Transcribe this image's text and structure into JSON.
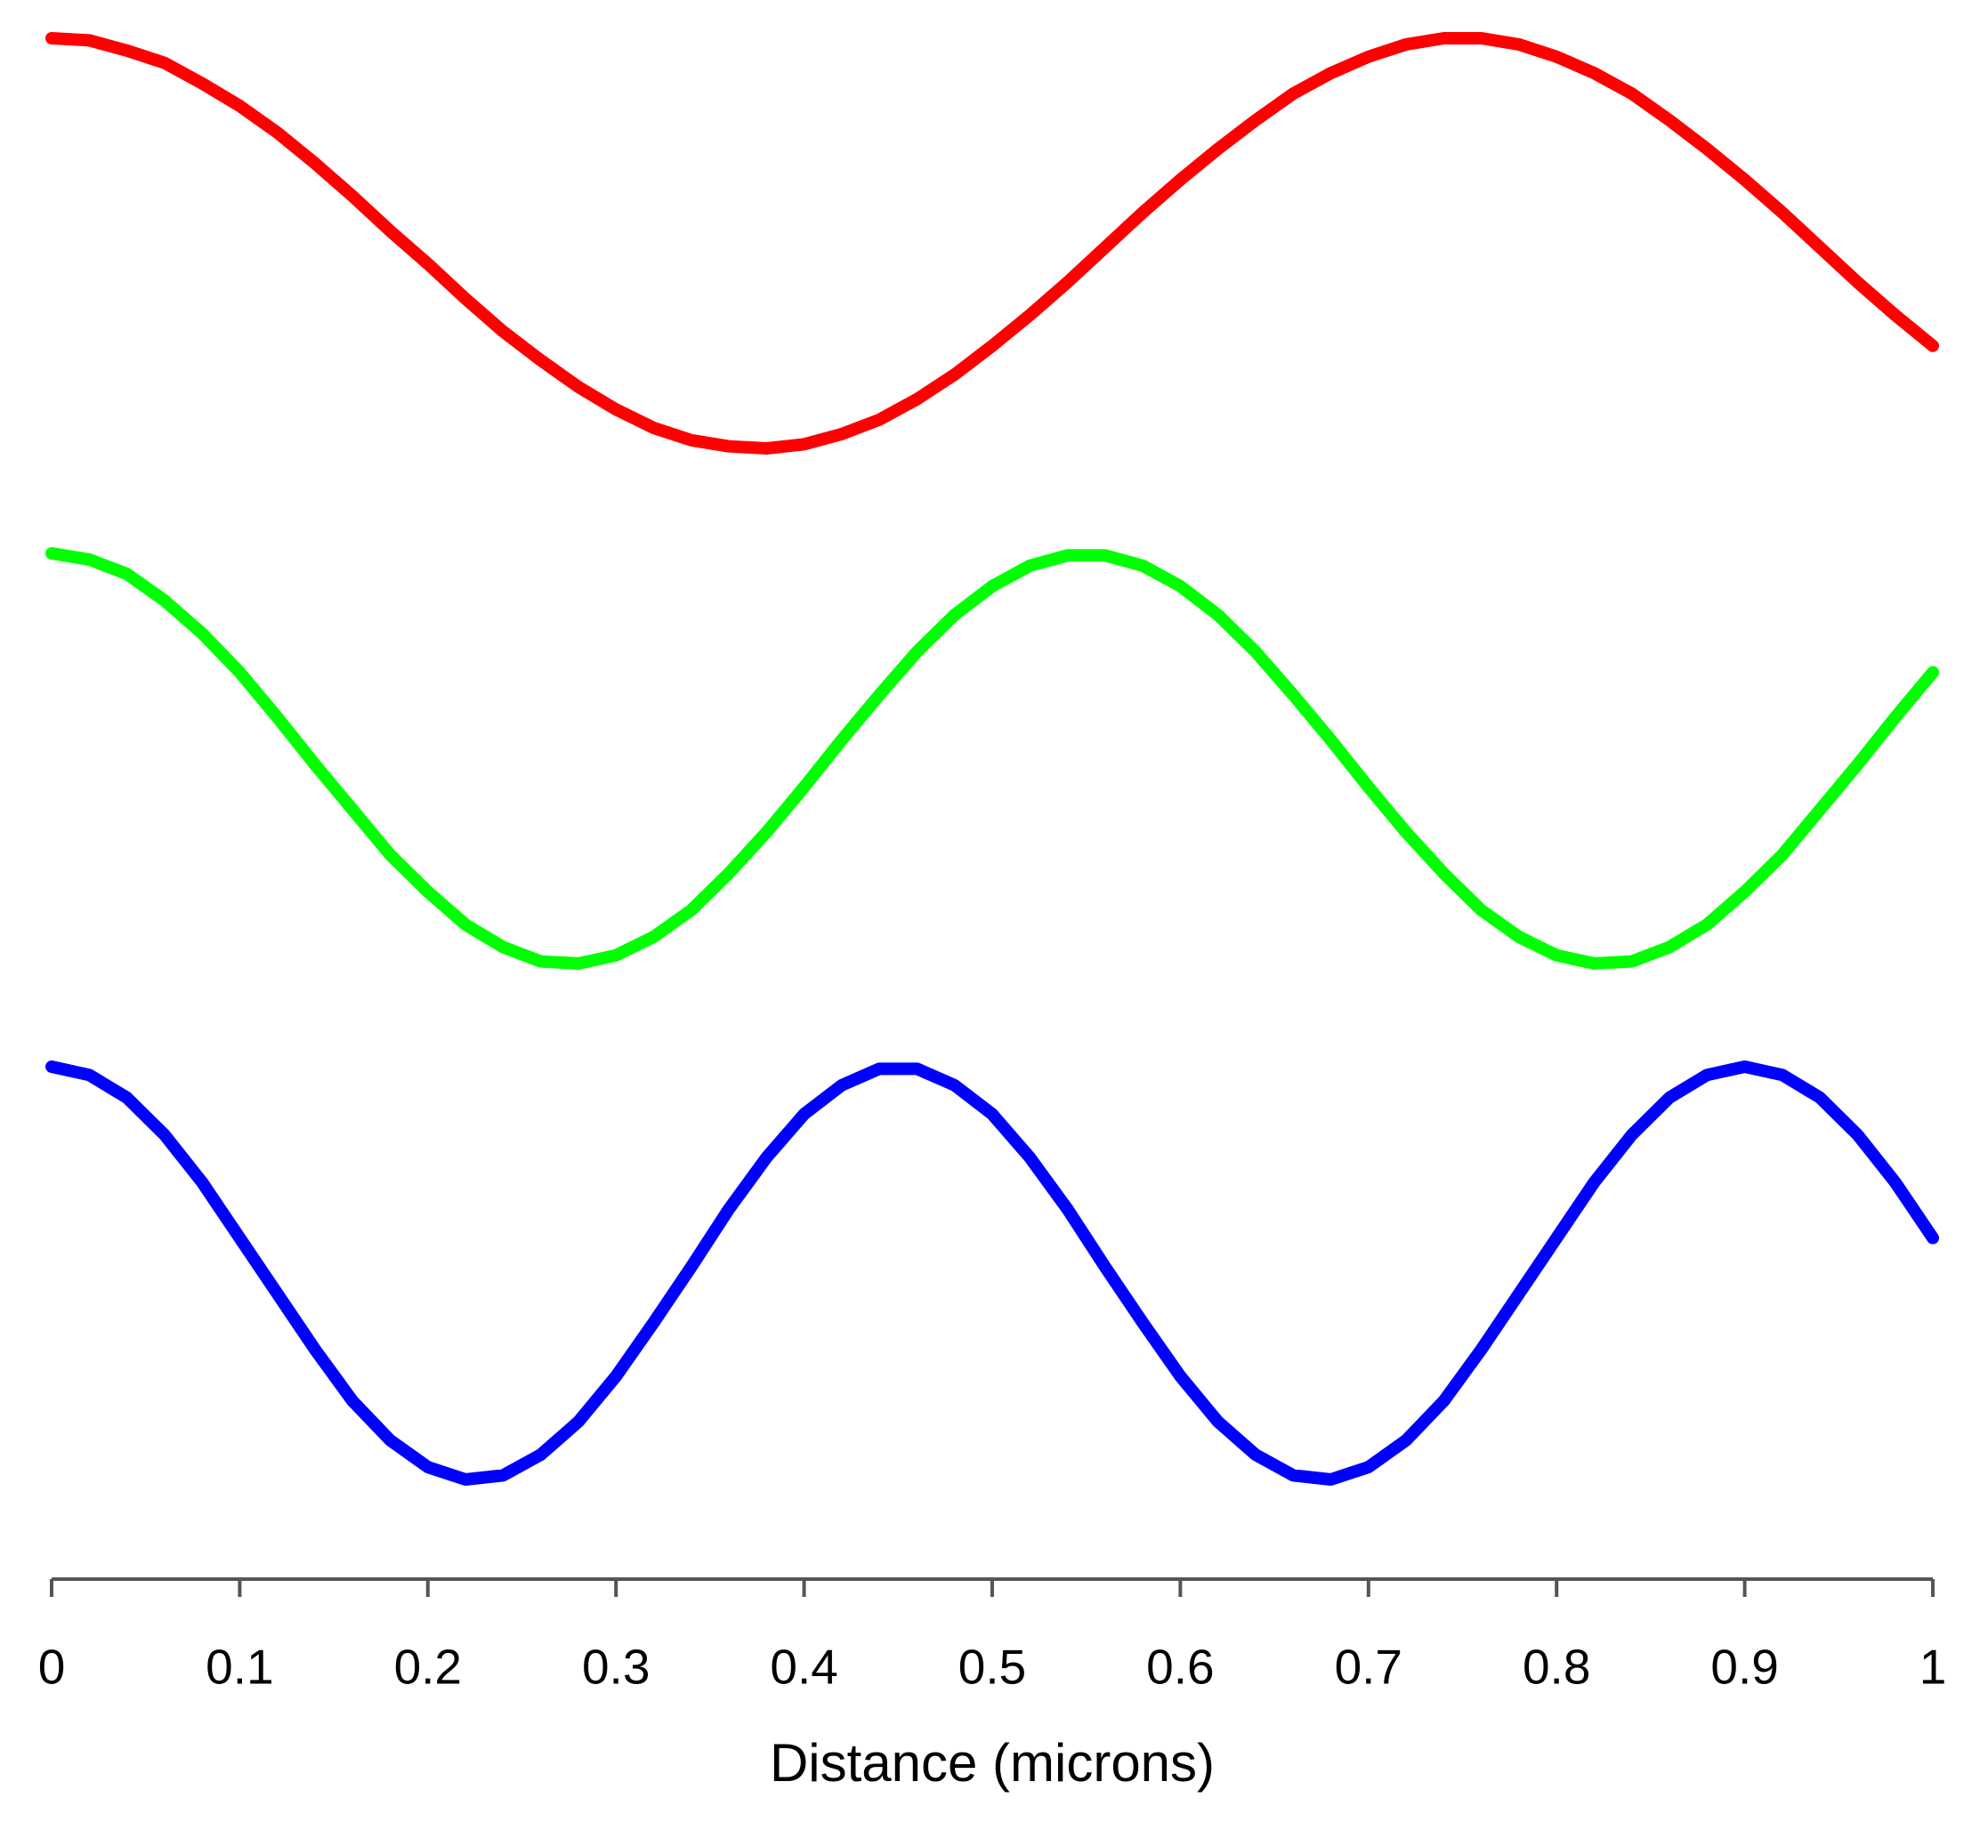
{
  "chart_data": {
    "type": "line",
    "x_label": "Distance (microns)",
    "x": [
      0,
      0.02,
      0.04,
      0.06,
      0.08,
      0.1,
      0.12,
      0.14,
      0.16,
      0.18,
      0.2,
      0.22,
      0.24,
      0.26,
      0.28,
      0.3,
      0.32,
      0.34,
      0.36,
      0.38,
      0.4,
      0.42,
      0.44,
      0.46,
      0.48,
      0.5,
      0.52,
      0.54,
      0.56,
      0.58,
      0.6,
      0.62,
      0.64,
      0.66,
      0.68,
      0.7,
      0.72,
      0.74,
      0.76,
      0.78,
      0.8,
      0.82,
      0.84,
      0.86,
      0.88,
      0.9,
      0.92,
      0.94,
      0.96,
      0.98,
      1
    ],
    "series": [
      {
        "color": "#ff0000",
        "values": [
          1,
          0.99,
          0.94,
          0.88,
          0.78,
          0.67,
          0.54,
          0.39,
          0.23,
          0.06,
          -0.1,
          -0.27,
          -0.43,
          -0.57,
          -0.7,
          -0.81,
          -0.9,
          -0.96,
          -0.99,
          -1.0,
          -0.98,
          -0.93,
          -0.86,
          -0.76,
          -0.64,
          -0.5,
          -0.35,
          -0.19,
          -0.02,
          0.15,
          0.31,
          0.46,
          0.6,
          0.73,
          0.83,
          0.91,
          0.97,
          1.0,
          1.0,
          0.97,
          0.91,
          0.83,
          0.73,
          0.6,
          0.46,
          0.31,
          0.15,
          -0.02,
          -0.19,
          -0.35,
          -0.5
        ]
      },
      {
        "color": "#00ff00",
        "values": [
          1,
          0.97,
          0.9,
          0.77,
          0.61,
          0.42,
          0.2,
          -0.03,
          -0.25,
          -0.47,
          -0.65,
          -0.81,
          -0.92,
          -0.99,
          -1.0,
          -0.96,
          -0.87,
          -0.74,
          -0.56,
          -0.36,
          -0.14,
          0.09,
          0.31,
          0.52,
          0.7,
          0.84,
          0.94,
          0.99,
          0.99,
          0.94,
          0.84,
          0.7,
          0.52,
          0.31,
          0.09,
          -0.14,
          -0.36,
          -0.56,
          -0.74,
          -0.87,
          -0.96,
          -1.0,
          -0.99,
          -0.92,
          -0.81,
          -0.65,
          -0.47,
          -0.25,
          -0.03,
          0.2,
          0.42
        ]
      },
      {
        "color": "#0000ff",
        "values": [
          1,
          0.96,
          0.85,
          0.67,
          0.44,
          0.17,
          -0.1,
          -0.37,
          -0.62,
          -0.81,
          -0.94,
          -1.0,
          -0.98,
          -0.88,
          -0.72,
          -0.5,
          -0.24,
          0.03,
          0.31,
          0.56,
          0.77,
          0.91,
          0.99,
          0.99,
          0.91,
          0.77,
          0.56,
          0.31,
          0.03,
          -0.24,
          -0.5,
          -0.72,
          -0.88,
          -0.98,
          -1.0,
          -0.94,
          -0.81,
          -0.62,
          -0.37,
          -0.1,
          0.17,
          0.44,
          0.67,
          0.85,
          0.96,
          1.0,
          0.96,
          0.85,
          0.67,
          0.44,
          0.17
        ]
      }
    ],
    "xlim": [
      0,
      1
    ],
    "xticks": [
      0,
      0.1,
      0.2,
      0.3,
      0.4,
      0.5,
      0.6,
      0.7,
      0.8,
      0.9,
      1
    ],
    "ylim": [
      -1,
      1
    ],
    "grid": false
  }
}
